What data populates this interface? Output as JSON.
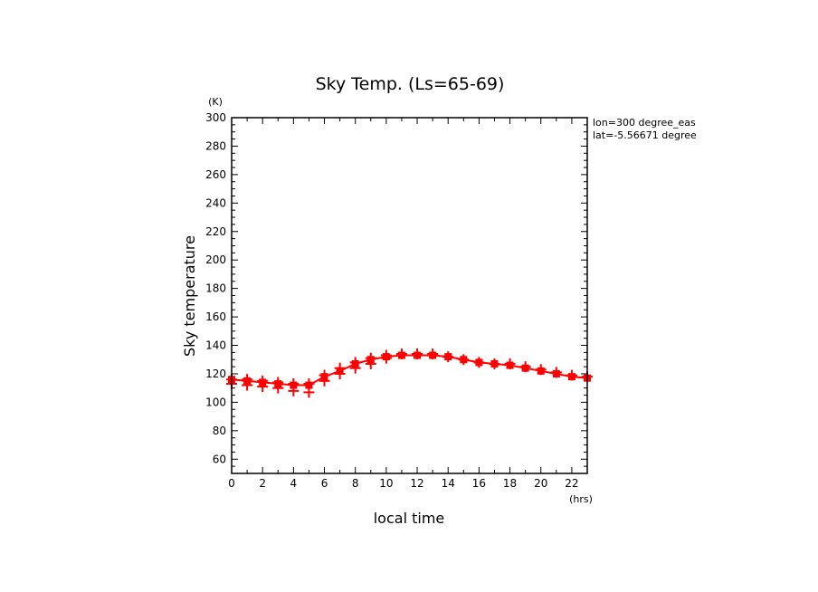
{
  "chart_data": {
    "type": "line",
    "title": "Sky Temp. (Ls=65-69)",
    "xlabel": "local time",
    "ylabel": "Sky temperature",
    "x_unit": "(hrs)",
    "y_unit": "(K)",
    "xlim": [
      0,
      23
    ],
    "ylim": [
      50,
      300
    ],
    "x_ticks": [
      0,
      2,
      4,
      6,
      8,
      10,
      12,
      14,
      16,
      18,
      20,
      22
    ],
    "y_ticks": [
      60,
      80,
      100,
      120,
      140,
      160,
      180,
      200,
      220,
      240,
      260,
      280,
      300
    ],
    "annotations": [
      "lon=300 degree_eas",
      "lat=-5.56671 degree"
    ],
    "line_color": "#ff0000",
    "series": [
      {
        "style": "line-square",
        "x": [
          0,
          1,
          2,
          3,
          4,
          5,
          6,
          7,
          8,
          9,
          10,
          11,
          12,
          13,
          14,
          15,
          16,
          17,
          18,
          19,
          20,
          21,
          22,
          23
        ],
        "y": [
          116,
          115,
          114,
          113,
          112,
          112,
          118,
          122,
          127,
          130,
          132,
          133,
          133,
          133,
          132,
          130,
          128,
          127,
          126,
          124,
          122,
          120,
          118,
          117
        ]
      },
      {
        "style": "cross",
        "x": [
          0,
          0,
          1,
          1,
          2,
          2,
          3,
          3,
          4,
          4,
          5,
          5,
          6,
          6,
          7,
          7,
          8,
          8,
          9,
          9,
          10,
          10,
          11,
          12,
          13,
          14,
          15,
          16,
          17,
          18,
          19,
          20,
          21,
          22,
          23
        ],
        "y": [
          116,
          113,
          116,
          112,
          115,
          111,
          114,
          110,
          113,
          108,
          113,
          107,
          119,
          115,
          124,
          120,
          128,
          124,
          131,
          127,
          133,
          131,
          134,
          134,
          134,
          132,
          130,
          128,
          127,
          127,
          125,
          123,
          121,
          119,
          118
        ]
      }
    ]
  }
}
